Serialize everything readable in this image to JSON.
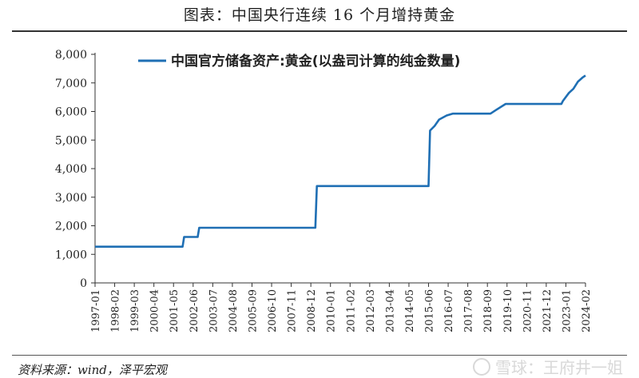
{
  "page": {
    "title": "图表：中国央行连续 16 个月增持黄金",
    "source": "资料来源：wind，泽平宏观",
    "watermark": "雪球：王府井一姐"
  },
  "chart_data": {
    "type": "line",
    "title": "图表：中国央行连续 16 个月增持黄金",
    "xlabel": "",
    "ylabel": "",
    "ylim": [
      0,
      8000
    ],
    "yticks": [
      0,
      1000,
      2000,
      3000,
      4000,
      5000,
      6000,
      7000,
      8000
    ],
    "ytick_labels": [
      "0",
      "1,000",
      "2,000",
      "3,000",
      "4,000",
      "5,000",
      "6,000",
      "7,000",
      "8,000"
    ],
    "xticks": [
      "1997-01",
      "1998-02",
      "1999-03",
      "2000-04",
      "2001-05",
      "2002-06",
      "2003-07",
      "2004-08",
      "2005-09",
      "2006-10",
      "2007-11",
      "2008-12",
      "2010-01",
      "2011-02",
      "2012-03",
      "2013-04",
      "2014-05",
      "2015-06",
      "2016-07",
      "2017-08",
      "2018-09",
      "2019-10",
      "2020-11",
      "2021-12",
      "2023-01",
      "2024-02"
    ],
    "legend": "top-left",
    "grid": false,
    "color": "#1f6fb4",
    "series": [
      {
        "name": "中国官方储备资产:黄金(以盎司计算的纯金数量)",
        "x": [
          "1997-01",
          "2001-11",
          "2001-12",
          "2002-09",
          "2002-10",
          "2003-12",
          "2009-03",
          "2009-04",
          "2015-06",
          "2015-07",
          "2015-10",
          "2016-01",
          "2016-06",
          "2016-10",
          "2018-11",
          "2019-03",
          "2019-09",
          "2022-10",
          "2022-11",
          "2023-03",
          "2023-06",
          "2023-09",
          "2023-12",
          "2024-02"
        ],
        "values": [
          1267,
          1267,
          1608,
          1608,
          1929,
          1929,
          1929,
          3389,
          3389,
          5331,
          5493,
          5718,
          5861,
          5924,
          5924,
          6062,
          6264,
          6264,
          6367,
          6650,
          6795,
          7046,
          7187,
          7258
        ]
      }
    ]
  }
}
